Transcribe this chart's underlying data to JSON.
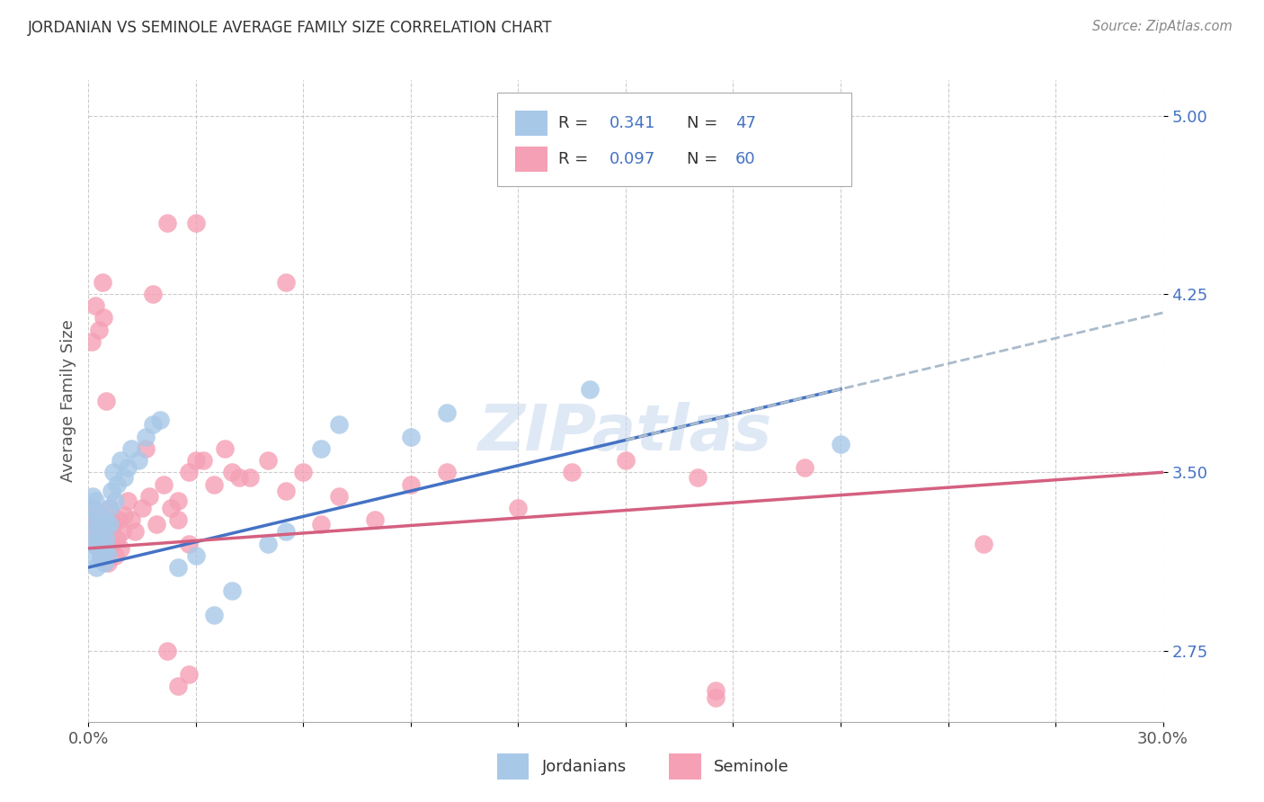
{
  "title": "JORDANIAN VS SEMINOLE AVERAGE FAMILY SIZE CORRELATION CHART",
  "source": "Source: ZipAtlas.com",
  "ylabel": "Average Family Size",
  "legend_label1": "Jordanians",
  "legend_label2": "Seminole",
  "legend_R1": "0.341",
  "legend_N1": "47",
  "legend_R2": "0.097",
  "legend_N2": "60",
  "xmin": 0.0,
  "xmax": 30.0,
  "ymin": 2.45,
  "ymax": 5.15,
  "yticks": [
    2.75,
    3.5,
    4.25,
    5.0
  ],
  "ytick_labels": [
    "2.75",
    "3.50",
    "4.25",
    "5.00"
  ],
  "color_blue": "#A8C8E8",
  "color_pink": "#F5A0B5",
  "color_blue_text": "#4472C4",
  "color_line_blue": "#4472C4",
  "color_line_pink": "#D46080",
  "color_line_dashed": "#AABBCC",
  "watermark": "ZIPatlas",
  "jordanians_x": [
    0.05,
    0.08,
    0.1,
    0.12,
    0.15,
    0.18,
    0.2,
    0.22,
    0.25,
    0.28,
    0.3,
    0.32,
    0.35,
    0.38,
    0.4,
    0.42,
    0.45,
    0.48,
    0.5,
    0.52,
    0.55,
    0.58,
    0.6,
    0.65,
    0.7,
    0.75,
    0.8,
    0.9,
    1.0,
    1.1,
    1.2,
    1.4,
    1.6,
    1.8,
    2.0,
    2.5,
    3.0,
    3.5,
    4.0,
    5.0,
    5.5,
    6.5,
    7.0,
    9.0,
    10.0,
    14.0,
    21.0
  ],
  "jordanians_y": [
    3.3,
    3.2,
    3.35,
    3.4,
    3.15,
    3.25,
    3.38,
    3.1,
    3.22,
    3.18,
    3.28,
    3.32,
    3.14,
    3.2,
    3.25,
    3.3,
    3.12,
    3.18,
    3.22,
    3.28,
    3.15,
    3.35,
    3.28,
    3.42,
    3.5,
    3.38,
    3.45,
    3.55,
    3.48,
    3.52,
    3.6,
    3.55,
    3.65,
    3.7,
    3.72,
    3.1,
    3.15,
    2.9,
    3.0,
    3.2,
    3.25,
    3.6,
    3.7,
    3.65,
    3.75,
    3.85,
    3.62
  ],
  "seminole_x": [
    0.05,
    0.1,
    0.15,
    0.2,
    0.25,
    0.3,
    0.35,
    0.4,
    0.45,
    0.5,
    0.55,
    0.6,
    0.65,
    0.7,
    0.75,
    0.8,
    0.85,
    0.9,
    0.95,
    1.0,
    1.1,
    1.2,
    1.3,
    1.5,
    1.7,
    1.9,
    2.1,
    2.3,
    2.5,
    2.8,
    3.0,
    3.5,
    4.0,
    4.5,
    5.0,
    5.5,
    6.0,
    7.0,
    8.0,
    9.0,
    10.0,
    12.0,
    13.5,
    15.0,
    17.0,
    20.0,
    25.0,
    3.2,
    3.8,
    4.2,
    0.42,
    0.48,
    0.38,
    0.28,
    0.18,
    0.08,
    1.6,
    2.5,
    6.5,
    17.5
  ],
  "seminole_y": [
    3.3,
    3.25,
    3.35,
    3.2,
    3.28,
    3.22,
    3.15,
    3.3,
    3.25,
    3.18,
    3.12,
    3.35,
    3.2,
    3.28,
    3.15,
    3.22,
    3.3,
    3.18,
    3.25,
    3.32,
    3.38,
    3.3,
    3.25,
    3.35,
    3.4,
    3.28,
    3.45,
    3.35,
    3.3,
    3.5,
    3.55,
    3.45,
    3.5,
    3.48,
    3.55,
    3.42,
    3.5,
    3.4,
    3.3,
    3.45,
    3.5,
    3.35,
    3.5,
    3.55,
    3.48,
    3.52,
    3.2,
    3.55,
    3.6,
    3.48,
    4.15,
    3.8,
    4.3,
    4.1,
    4.2,
    4.05,
    3.6,
    3.38,
    3.28,
    2.58
  ],
  "seminole_outliers_x": [
    1.8,
    2.2,
    3.0,
    5.5,
    2.8,
    2.2,
    2.5,
    2.8,
    17.5
  ],
  "seminole_outliers_y": [
    4.25,
    4.55,
    4.55,
    4.3,
    3.2,
    2.75,
    2.6,
    2.65,
    2.55
  ]
}
